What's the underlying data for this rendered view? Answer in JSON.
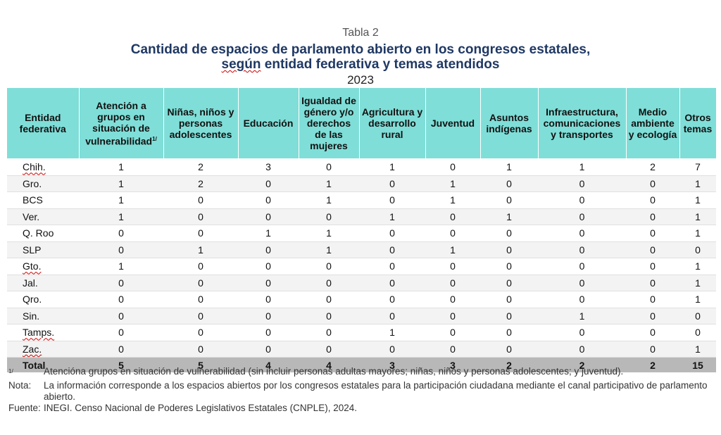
{
  "header": {
    "label": "Tabla 2",
    "title_line1": "Cantidad de espacios de parlamento abierto en los congresos estatales,",
    "title_line2_pre": "",
    "title_line2_underlined": "según",
    "title_line2_post": " entidad federativa y temas atendidos",
    "year": "2023"
  },
  "table": {
    "columns": [
      "Entidad federativa",
      "Atención a grupos en situación de vulnerabilidad",
      "Niñas, niños y personas adolescentes",
      "Educación",
      "Igualdad de género y/o derechos de las mujeres",
      "Agricultura y desarrollo rural",
      "Juventud",
      "Asuntos indígenas",
      "Infraestructura, comunicaciones y transportes",
      "Medio ambiente y ecología",
      "Otros temas"
    ],
    "col1_sup": "1/",
    "rows": [
      {
        "name": "Chih.",
        "values": [
          "1",
          "2",
          "3",
          "0",
          "1",
          "0",
          "1",
          "1",
          "2",
          "7"
        ]
      },
      {
        "name": "Gro.",
        "values": [
          "1",
          "2",
          "0",
          "1",
          "0",
          "1",
          "0",
          "0",
          "0",
          "1"
        ]
      },
      {
        "name": "BCS",
        "values": [
          "1",
          "0",
          "0",
          "1",
          "0",
          "1",
          "0",
          "0",
          "0",
          "1"
        ]
      },
      {
        "name": "Ver.",
        "values": [
          "1",
          "0",
          "0",
          "0",
          "1",
          "0",
          "1",
          "0",
          "0",
          "1"
        ]
      },
      {
        "name": "Q. Roo",
        "values": [
          "0",
          "0",
          "1",
          "1",
          "0",
          "0",
          "0",
          "0",
          "0",
          "1"
        ]
      },
      {
        "name": "SLP",
        "values": [
          "0",
          "1",
          "0",
          "1",
          "0",
          "1",
          "0",
          "0",
          "0",
          "0"
        ]
      },
      {
        "name": "Gto.",
        "values": [
          "1",
          "0",
          "0",
          "0",
          "0",
          "0",
          "0",
          "0",
          "0",
          "1"
        ]
      },
      {
        "name": "Jal.",
        "values": [
          "0",
          "0",
          "0",
          "0",
          "0",
          "0",
          "0",
          "0",
          "0",
          "1"
        ]
      },
      {
        "name": "Qro.",
        "values": [
          "0",
          "0",
          "0",
          "0",
          "0",
          "0",
          "0",
          "0",
          "0",
          "1"
        ]
      },
      {
        "name": "Sin.",
        "values": [
          "0",
          "0",
          "0",
          "0",
          "0",
          "0",
          "0",
          "1",
          "0",
          "0"
        ]
      },
      {
        "name": "Tamps.",
        "values": [
          "0",
          "0",
          "0",
          "0",
          "1",
          "0",
          "0",
          "0",
          "0",
          "0"
        ]
      },
      {
        "name": "Zac.",
        "values": [
          "0",
          "0",
          "0",
          "0",
          "0",
          "0",
          "0",
          "0",
          "0",
          "1"
        ]
      }
    ],
    "total": {
      "name": "Total",
      "values": [
        "5",
        "5",
        "4",
        "4",
        "3",
        "3",
        "2",
        "2",
        "2",
        "15"
      ]
    }
  },
  "notes": [
    {
      "label": "1/",
      "text": "Atencióna grupos en situación de vulnerabilidad (sin incluir personas adultas mayores; niñas, niños y personas adolescentes; y juventud)."
    },
    {
      "label": "Nota:",
      "text": "La información corresponde a los espacios abiertos por los congresos estatales para la participación ciudadana mediante el canal participativo de parlamento abierto."
    },
    {
      "label": "Fuente:",
      "text": "INEGI. Censo Nacional de Poderes Legislativos Estatales (CNPLE), 2024."
    }
  ]
}
